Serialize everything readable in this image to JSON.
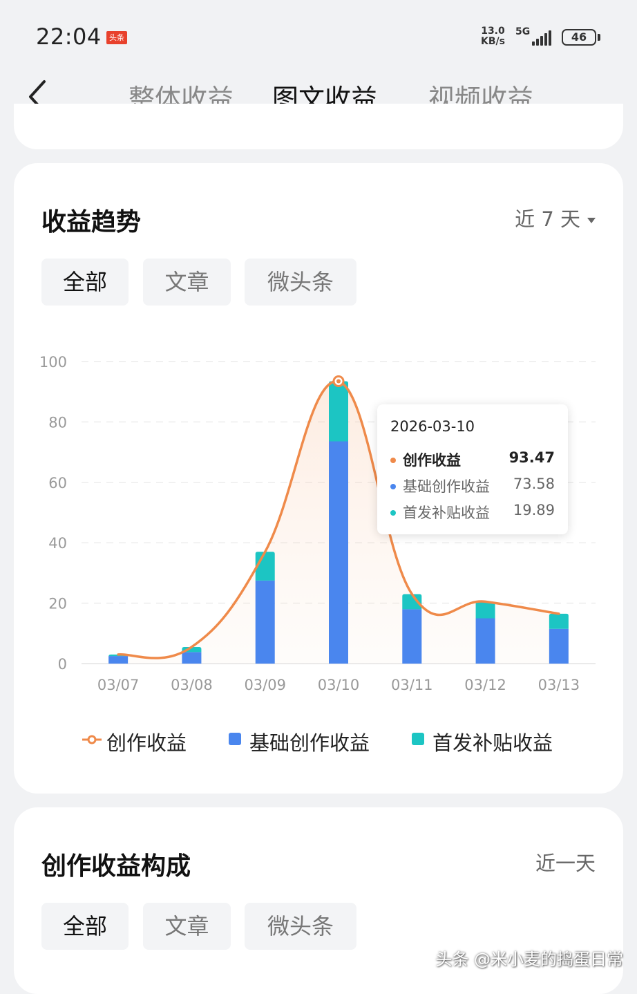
{
  "status_bar": {
    "time": "22:04",
    "app_badge": "头条",
    "net_speed_value": "13.0",
    "net_speed_unit": "KB/s",
    "network_type": "5G",
    "battery": "46"
  },
  "header": {
    "back_icon": "chevron-left-icon",
    "tabs": [
      {
        "label": "整体收益",
        "active": false
      },
      {
        "label": "图文收益",
        "active": true
      },
      {
        "label": "视频收益",
        "active": false
      }
    ]
  },
  "trend_card": {
    "title": "收益趋势",
    "range": "近 7 天",
    "filters": [
      {
        "label": "全部",
        "active": true
      },
      {
        "label": "文章",
        "active": false
      },
      {
        "label": "微头条",
        "active": false
      }
    ],
    "tooltip": {
      "date": "2026-03-10",
      "rows": [
        {
          "label": "创作收益",
          "value": "93.47",
          "color": "#ef8a4a"
        },
        {
          "label": "基础创作收益",
          "value": "73.58",
          "color": "#4a86ee"
        },
        {
          "label": "首发补贴收益",
          "value": "19.89",
          "color": "#1cc5c3"
        }
      ]
    },
    "legend": [
      {
        "label": "创作收益",
        "color": "#ef8a4a",
        "marker": "line-circle"
      },
      {
        "label": "基础创作收益",
        "color": "#4a86ee",
        "marker": "square"
      },
      {
        "label": "首发补贴收益",
        "color": "#1cc5c3",
        "marker": "square"
      }
    ]
  },
  "chart_data": {
    "type": "bar",
    "stacked": true,
    "categories": [
      "03/07",
      "03/08",
      "03/09",
      "03/10",
      "03/11",
      "03/12",
      "03/13"
    ],
    "series": [
      {
        "name": "基础创作收益",
        "type": "bar",
        "color": "#4a86ee",
        "values": [
          2.5,
          3.8,
          27.5,
          73.58,
          18.0,
          15.0,
          11.5
        ]
      },
      {
        "name": "首发补贴收益",
        "type": "bar",
        "color": "#1cc5c3",
        "values": [
          0.5,
          1.7,
          9.5,
          19.89,
          5.0,
          5.5,
          5.0
        ]
      },
      {
        "name": "创作收益",
        "type": "line",
        "color": "#ef8a4a",
        "values": [
          3.0,
          5.5,
          37.0,
          93.47,
          23.0,
          20.5,
          16.5
        ]
      }
    ],
    "y_ticks": [
      "0",
      "20",
      "40",
      "60",
      "80",
      "100"
    ],
    "ylim": [
      0,
      100
    ],
    "grid": true,
    "highlighted_index": 3
  },
  "composition_card": {
    "title": "创作收益构成",
    "range": "近一天",
    "filters": [
      {
        "label": "全部",
        "active": true
      },
      {
        "label": "文章",
        "active": false
      },
      {
        "label": "微头条",
        "active": false
      }
    ]
  },
  "watermark": "头条 @米小麦的捣蛋日常"
}
